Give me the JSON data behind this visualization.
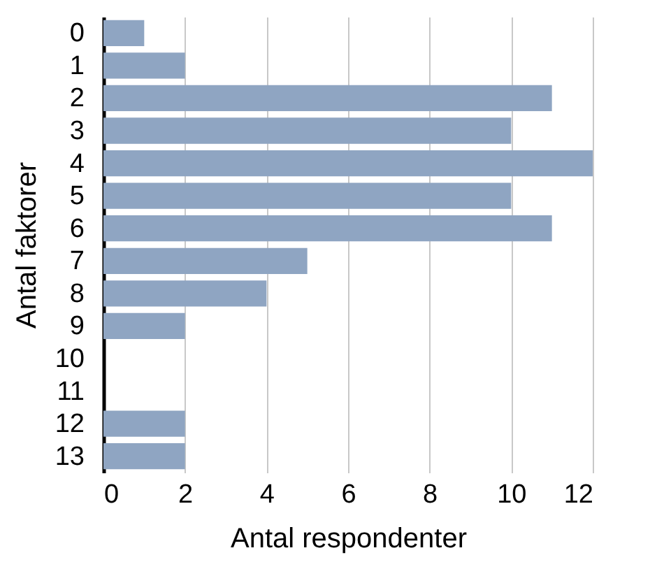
{
  "chart_data": {
    "type": "bar",
    "orientation": "horizontal",
    "xlabel": "Antal respondenter",
    "ylabel": "Antal faktorer",
    "categories": [
      "0",
      "1",
      "2",
      "3",
      "4",
      "5",
      "6",
      "7",
      "8",
      "9",
      "10",
      "11",
      "12",
      "13"
    ],
    "values": [
      1,
      2,
      11,
      10,
      12,
      10,
      11,
      5,
      4,
      2,
      0,
      0,
      2,
      2
    ],
    "color": "#8fa5c2",
    "xlim": [
      0,
      12
    ],
    "xticks": [
      0,
      2,
      4,
      6,
      8,
      10,
      12
    ],
    "grid": "x"
  }
}
